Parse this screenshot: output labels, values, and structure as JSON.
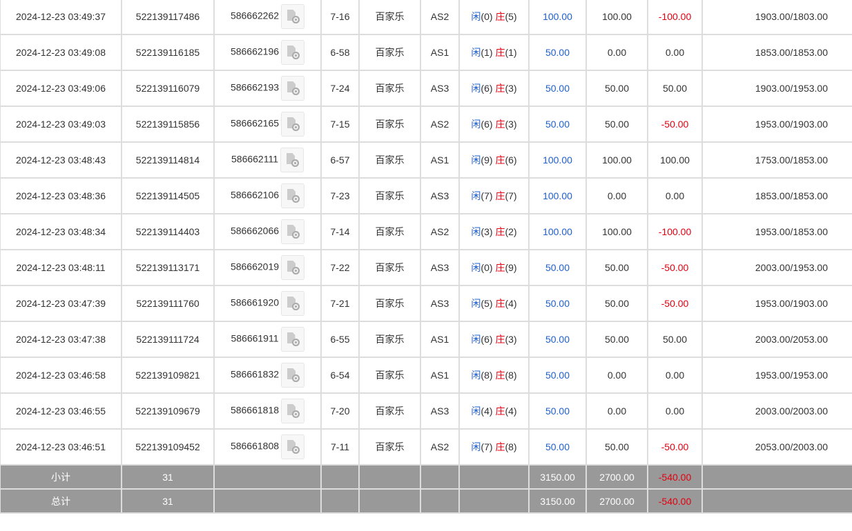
{
  "rows": [
    [
      "2024-12-23 03:49:37",
      "522139117486",
      "586662262",
      "7-16",
      "百家乐",
      "AS2",
      "0",
      "5",
      "100.00",
      "100.00",
      "-100.00",
      "1903.00/1803.00"
    ],
    [
      "2024-12-23 03:49:08",
      "522139116185",
      "586662196",
      "6-58",
      "百家乐",
      "AS1",
      "1",
      "1",
      "50.00",
      "0.00",
      "0.00",
      "1853.00/1853.00"
    ],
    [
      "2024-12-23 03:49:06",
      "522139116079",
      "586662193",
      "7-24",
      "百家乐",
      "AS3",
      "6",
      "3",
      "50.00",
      "50.00",
      "50.00",
      "1903.00/1953.00"
    ],
    [
      "2024-12-23 03:49:03",
      "522139115856",
      "586662165",
      "7-15",
      "百家乐",
      "AS2",
      "6",
      "3",
      "50.00",
      "50.00",
      "-50.00",
      "1953.00/1903.00"
    ],
    [
      "2024-12-23 03:48:43",
      "522139114814",
      "586662111",
      "6-57",
      "百家乐",
      "AS1",
      "9",
      "6",
      "100.00",
      "100.00",
      "100.00",
      "1753.00/1853.00"
    ],
    [
      "2024-12-23 03:48:36",
      "522139114505",
      "586662106",
      "7-23",
      "百家乐",
      "AS3",
      "7",
      "7",
      "100.00",
      "0.00",
      "0.00",
      "1853.00/1853.00"
    ],
    [
      "2024-12-23 03:48:34",
      "522139114403",
      "586662066",
      "7-14",
      "百家乐",
      "AS2",
      "3",
      "2",
      "100.00",
      "100.00",
      "-100.00",
      "1953.00/1853.00"
    ],
    [
      "2024-12-23 03:48:11",
      "522139113171",
      "586662019",
      "7-22",
      "百家乐",
      "AS3",
      "0",
      "9",
      "50.00",
      "50.00",
      "-50.00",
      "2003.00/1953.00"
    ],
    [
      "2024-12-23 03:47:39",
      "522139111760",
      "586661920",
      "7-21",
      "百家乐",
      "AS3",
      "5",
      "4",
      "50.00",
      "50.00",
      "-50.00",
      "1953.00/1903.00"
    ],
    [
      "2024-12-23 03:47:38",
      "522139111724",
      "586661911",
      "6-55",
      "百家乐",
      "AS1",
      "6",
      "3",
      "50.00",
      "50.00",
      "50.00",
      "2003.00/2053.00"
    ],
    [
      "2024-12-23 03:46:58",
      "522139109821",
      "586661832",
      "6-54",
      "百家乐",
      "AS1",
      "8",
      "8",
      "50.00",
      "0.00",
      "0.00",
      "1953.00/1953.00"
    ],
    [
      "2024-12-23 03:46:55",
      "522139109679",
      "586661818",
      "7-20",
      "百家乐",
      "AS3",
      "4",
      "4",
      "50.00",
      "0.00",
      "0.00",
      "2003.00/2003.00"
    ],
    [
      "2024-12-23 03:46:51",
      "522139109452",
      "586661808",
      "7-11",
      "百家乐",
      "AS2",
      "7",
      "8",
      "50.00",
      "50.00",
      "-50.00",
      "2053.00/2003.00"
    ]
  ],
  "labels": {
    "player": "闲",
    "banker": "庄"
  },
  "summary": [
    {
      "label": "小计",
      "count": "31",
      "bet": "3150.00",
      "valid": "2700.00",
      "win": "-540.00"
    },
    {
      "label": "总计",
      "count": "31",
      "bet": "3150.00",
      "valid": "2700.00",
      "win": "-540.00"
    }
  ],
  "colors": {
    "blue": "#1d5fd1",
    "red": "#e4000f",
    "summary_bg": "#999999"
  },
  "icons": {
    "replay": "video-replay-icon"
  }
}
